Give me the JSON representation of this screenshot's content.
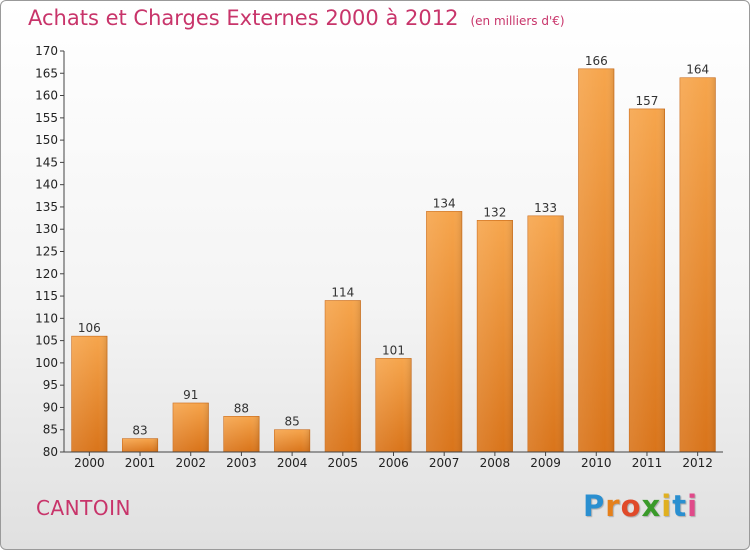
{
  "header": {
    "title": "Achats et Charges Externes 2000 à 2012",
    "unit": "(en milliers d'€)"
  },
  "commune": "CANTOIN",
  "logo": {
    "letters": [
      "P",
      "r",
      "o",
      "x",
      "i",
      "t",
      "i"
    ],
    "colors": [
      "#2a8fd0",
      "#e5801a",
      "#e04a2a",
      "#3a9a2a",
      "#e0b020",
      "#2a8fd0",
      "#e04a8a"
    ]
  },
  "colors": {
    "bar_top": "#f6a54c",
    "bar_bottom": "#d9741a",
    "bar_edge": "#c96612",
    "accent": "#c8346a"
  },
  "chart_data": {
    "type": "bar",
    "title": "Achats et Charges Externes 2000 à 2012",
    "ylabel": "(en milliers d'€)",
    "categories": [
      "2000",
      "2001",
      "2002",
      "2003",
      "2004",
      "2005",
      "2006",
      "2007",
      "2008",
      "2009",
      "2010",
      "2011",
      "2012"
    ],
    "values": [
      106,
      83,
      91,
      88,
      85,
      114,
      101,
      134,
      132,
      133,
      166,
      157,
      164
    ],
    "ylim": [
      80,
      170
    ],
    "ytick_step": 5,
    "grid": false,
    "data_labels": true
  }
}
